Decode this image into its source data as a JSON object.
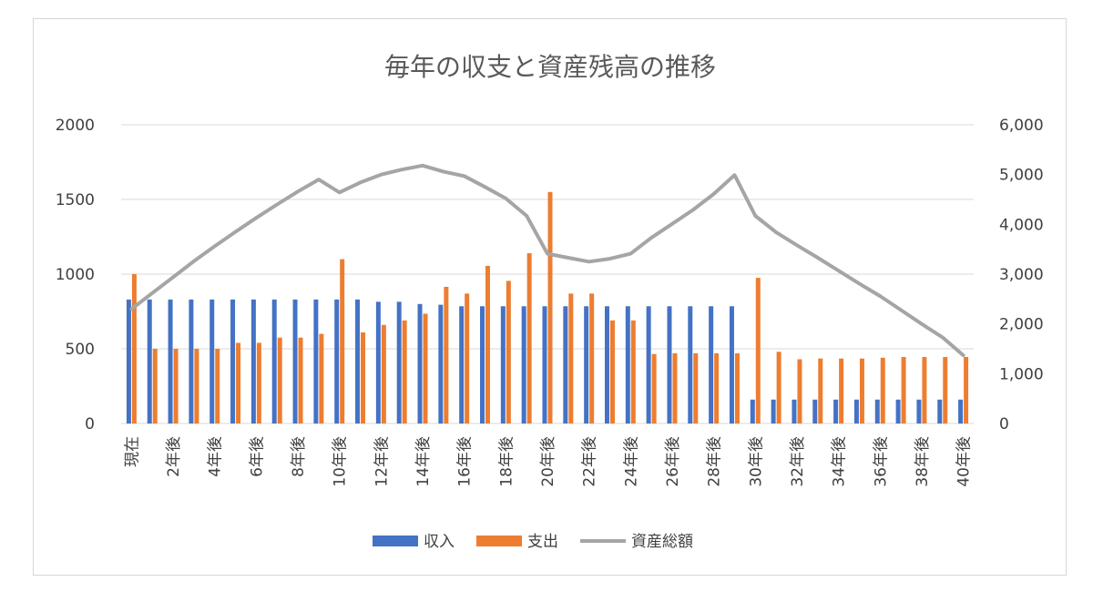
{
  "chart_data": {
    "type": "bar",
    "title": "毎年の収支と資産残高の推移",
    "categories": [
      "現在",
      "1年後",
      "2年後",
      "3年後",
      "4年後",
      "5年後",
      "6年後",
      "7年後",
      "8年後",
      "9年後",
      "10年後",
      "11年後",
      "12年後",
      "13年後",
      "14年後",
      "15年後",
      "16年後",
      "17年後",
      "18年後",
      "19年後",
      "20年後",
      "21年後",
      "22年後",
      "23年後",
      "24年後",
      "25年後",
      "26年後",
      "27年後",
      "28年後",
      "29年後",
      "30年後",
      "31年後",
      "32年後",
      "33年後",
      "34年後",
      "35年後",
      "36年後",
      "37年後",
      "38年後",
      "39年後",
      "40年後"
    ],
    "visible_tick_labels": [
      "現在",
      "2年後",
      "4年後",
      "6年後",
      "8年後",
      "10年後",
      "12年後",
      "14年後",
      "16年後",
      "18年後",
      "20年後",
      "22年後",
      "24年後",
      "26年後",
      "28年後",
      "30年後",
      "32年後",
      "34年後",
      "36年後",
      "38年後",
      "40年後"
    ],
    "series": [
      {
        "name": "収入",
        "type": "bar",
        "axis": "left",
        "color": "#4472C4",
        "values": [
          830,
          830,
          830,
          830,
          830,
          830,
          830,
          830,
          830,
          830,
          830,
          830,
          815,
          815,
          800,
          795,
          785,
          785,
          785,
          785,
          785,
          785,
          785,
          785,
          785,
          785,
          785,
          785,
          785,
          785,
          160,
          160,
          160,
          160,
          160,
          160,
          160,
          160,
          160,
          160,
          160
        ]
      },
      {
        "name": "支出",
        "type": "bar",
        "axis": "left",
        "color": "#ED7D31",
        "values": [
          1000,
          500,
          500,
          500,
          500,
          540,
          540,
          575,
          575,
          600,
          1100,
          610,
          660,
          690,
          735,
          915,
          870,
          1055,
          955,
          1140,
          1550,
          870,
          870,
          690,
          690,
          465,
          470,
          470,
          470,
          470,
          975,
          480,
          430,
          435,
          435,
          435,
          440,
          445,
          445,
          445,
          445
        ]
      },
      {
        "name": "資産総額",
        "type": "line",
        "axis": "right",
        "color": "#A5A5A5",
        "values": [
          2300,
          2620,
          2940,
          3260,
          3560,
          3850,
          4130,
          4400,
          4660,
          4900,
          4640,
          4840,
          5000,
          5100,
          5180,
          5060,
          4970,
          4750,
          4520,
          4170,
          3410,
          3330,
          3250,
          3310,
          3410,
          3730,
          4010,
          4290,
          4610,
          4990,
          4170,
          3840,
          3580,
          3330,
          3070,
          2810,
          2560,
          2280,
          2000,
          1730,
          1370
        ]
      }
    ],
    "y_left": {
      "min": 0,
      "max": 2000,
      "ticks": [
        "0",
        "500",
        "1000",
        "1500",
        "2000"
      ],
      "values": [
        0,
        500,
        1000,
        1500,
        2000
      ]
    },
    "y_right": {
      "min": 0,
      "max": 6000,
      "ticks": [
        "0",
        "1,000",
        "2,000",
        "3,000",
        "4,000",
        "5,000",
        "6,000"
      ],
      "values": [
        0,
        1000,
        2000,
        3000,
        4000,
        5000,
        6000
      ]
    },
    "grid": true,
    "legend_position": "bottom"
  }
}
